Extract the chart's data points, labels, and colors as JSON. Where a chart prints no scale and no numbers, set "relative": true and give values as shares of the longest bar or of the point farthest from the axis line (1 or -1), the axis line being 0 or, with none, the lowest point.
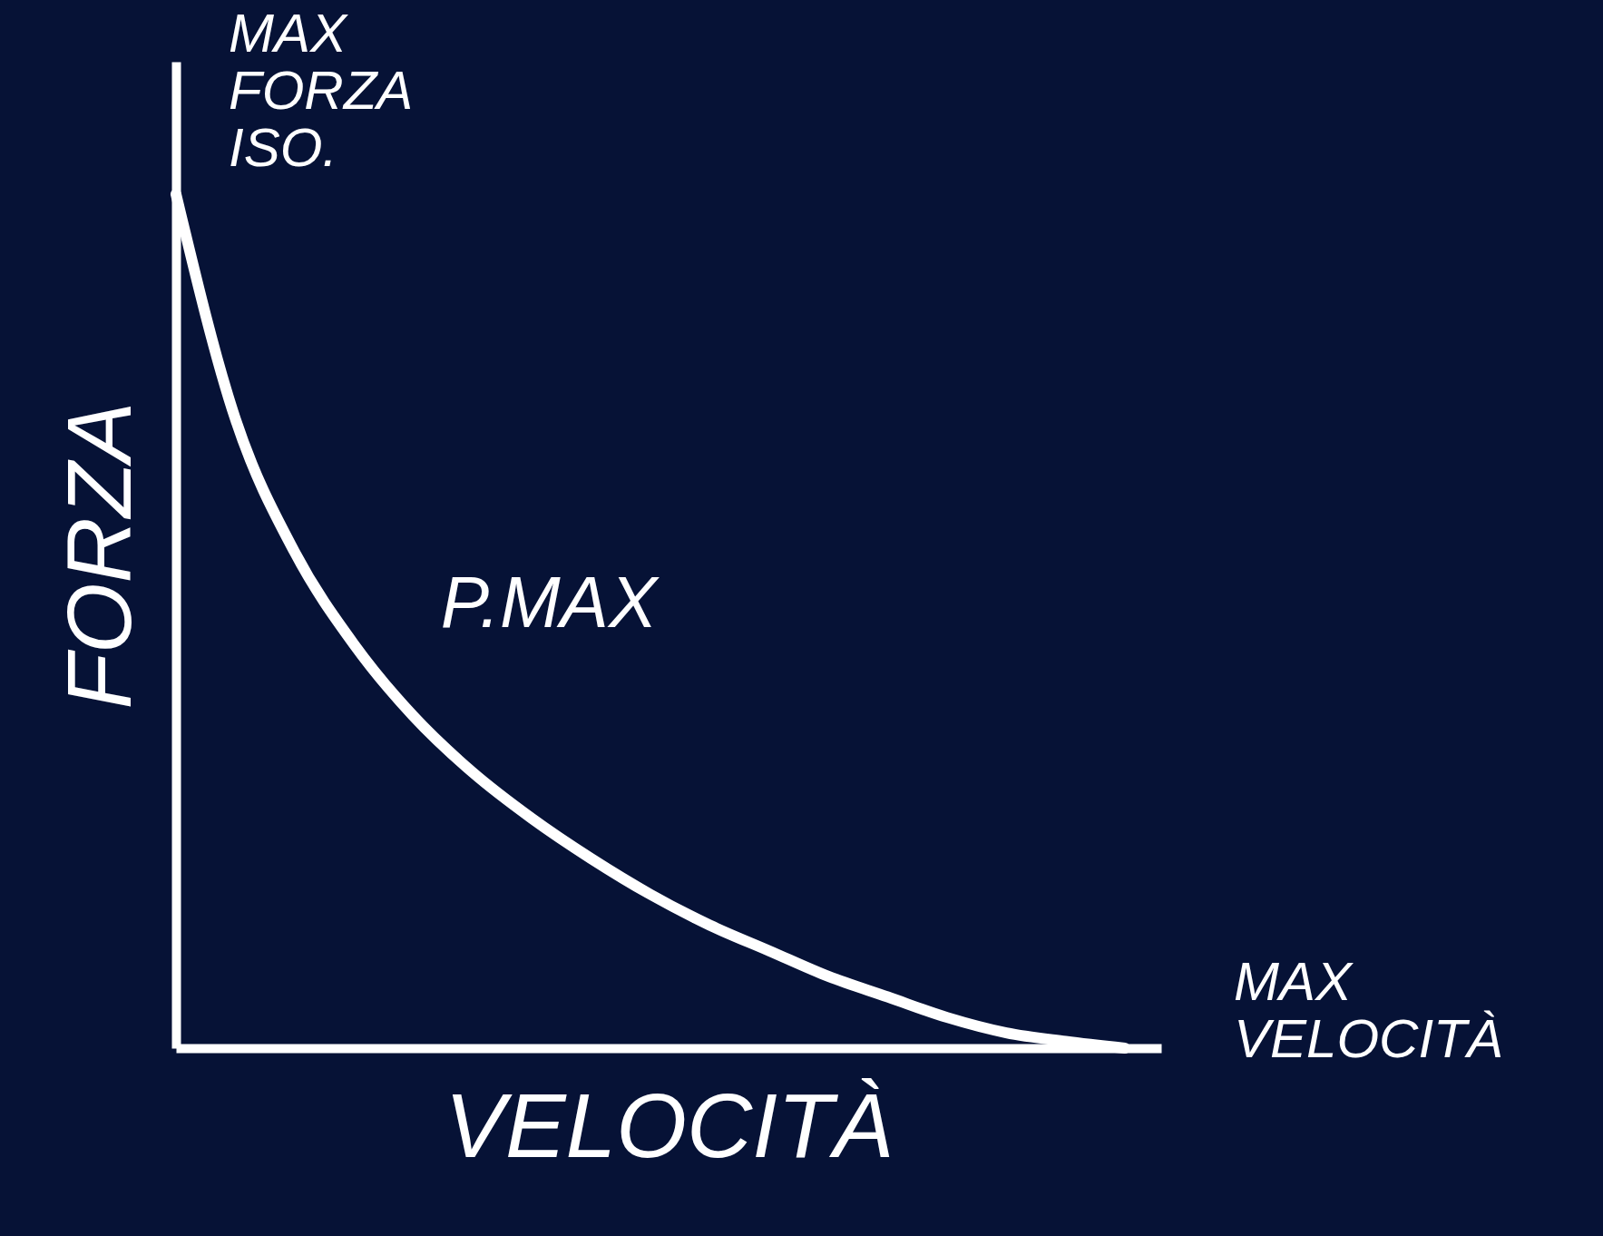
{
  "chart_data": {
    "type": "line",
    "relative": true,
    "xlabel": "VELOCITÀ",
    "ylabel": "FORZA",
    "categories": [
      null,
      null,
      null,
      null,
      null,
      null,
      null,
      null,
      null,
      null,
      null,
      null,
      null,
      null,
      null,
      null,
      null
    ],
    "series": [
      {
        "color": "#ffffff",
        "values": [
          1.0,
          0.737,
          0.581,
          0.473,
          0.389,
          0.323,
          0.269,
          0.222,
          0.18,
          0.144,
          0.114,
          0.084,
          0.06,
          0.036,
          0.018,
          0.008,
          0.0
        ]
      }
    ],
    "annotations": [
      "MAX FORZA ISO.",
      "MAX VELOCITÀ",
      "P.MAX"
    ],
    "grid": false,
    "line_style": "solid",
    "marker": "none"
  }
}
